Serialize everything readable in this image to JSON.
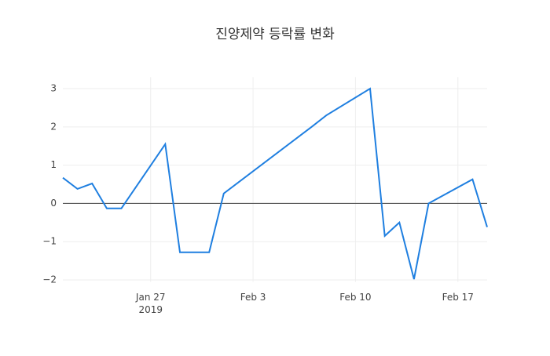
{
  "chart_data": {
    "type": "line",
    "title": "진양제약 등락률 변화",
    "x": [
      "2019-01-21",
      "2019-01-22",
      "2019-01-23",
      "2019-01-24",
      "2019-01-25",
      "2019-01-28",
      "2019-01-29",
      "2019-01-30",
      "2019-01-31",
      "2019-02-01",
      "2019-02-07",
      "2019-02-08",
      "2019-02-11",
      "2019-02-12",
      "2019-02-13",
      "2019-02-14",
      "2019-02-15",
      "2019-02-18",
      "2019-02-19"
    ],
    "series": [
      {
        "color": "#1f7fe0",
        "values": [
          0.67,
          0.38,
          0.52,
          -0.13,
          -0.13,
          1.55,
          -1.28,
          -1.28,
          -1.28,
          0.26,
          2.0,
          2.3,
          3.0,
          -0.85,
          -0.5,
          -1.98,
          0.0,
          0.63,
          -0.62
        ]
      }
    ],
    "xlim": [
      "2019-01-21",
      "2019-02-19"
    ],
    "xticks": [
      {
        "value": "2019-01-27",
        "label": "Jan 27"
      },
      {
        "value": "2019-02-03",
        "label": "Feb 3"
      },
      {
        "value": "2019-02-10",
        "label": "Feb 10"
      },
      {
        "value": "2019-02-17",
        "label": "Feb 17"
      }
    ],
    "x_year_label": "2019",
    "ylim": [
      -2.05,
      3.3
    ],
    "yticks": [
      -2,
      -1,
      0,
      1,
      2,
      3
    ],
    "ytick_labels": [
      "−2",
      "−1",
      "0",
      "1",
      "2",
      "3"
    ],
    "grid": true,
    "zeroline": true
  }
}
